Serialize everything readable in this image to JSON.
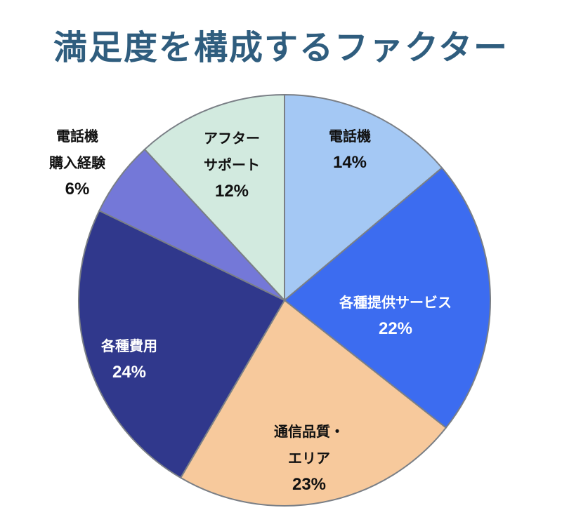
{
  "title": "満足度を構成するファクター",
  "chart_data": {
    "type": "pie",
    "title": "満足度を構成するファクター",
    "categories": [
      "電話機",
      "各種提供サービス",
      "通信品質・エリア",
      "各種費用",
      "電話機購入経験",
      "アフターサポート"
    ],
    "values": [
      14,
      22,
      23,
      24,
      6,
      12
    ],
    "unit": "%",
    "start_angle": "12 o'clock, clockwise",
    "colors": [
      "#a4c8f4",
      "#3c6cf0",
      "#f7c99c",
      "#30388c",
      "#7478d8",
      "#d2eadf"
    ],
    "legend": "none (data labels on slices)"
  },
  "slices": [
    {
      "label_lines": [
        "電話機"
      ],
      "pct": "14%"
    },
    {
      "label_lines": [
        "各種提供サービス"
      ],
      "pct": "22%"
    },
    {
      "label_lines": [
        "通信品質・",
        "エリア"
      ],
      "pct": "23%"
    },
    {
      "label_lines": [
        "各種費用"
      ],
      "pct": "24%"
    },
    {
      "label_lines": [
        "電話機",
        "購入経験"
      ],
      "pct": "6%"
    },
    {
      "label_lines": [
        "アフター",
        "サポート"
      ],
      "pct": "12%"
    }
  ]
}
